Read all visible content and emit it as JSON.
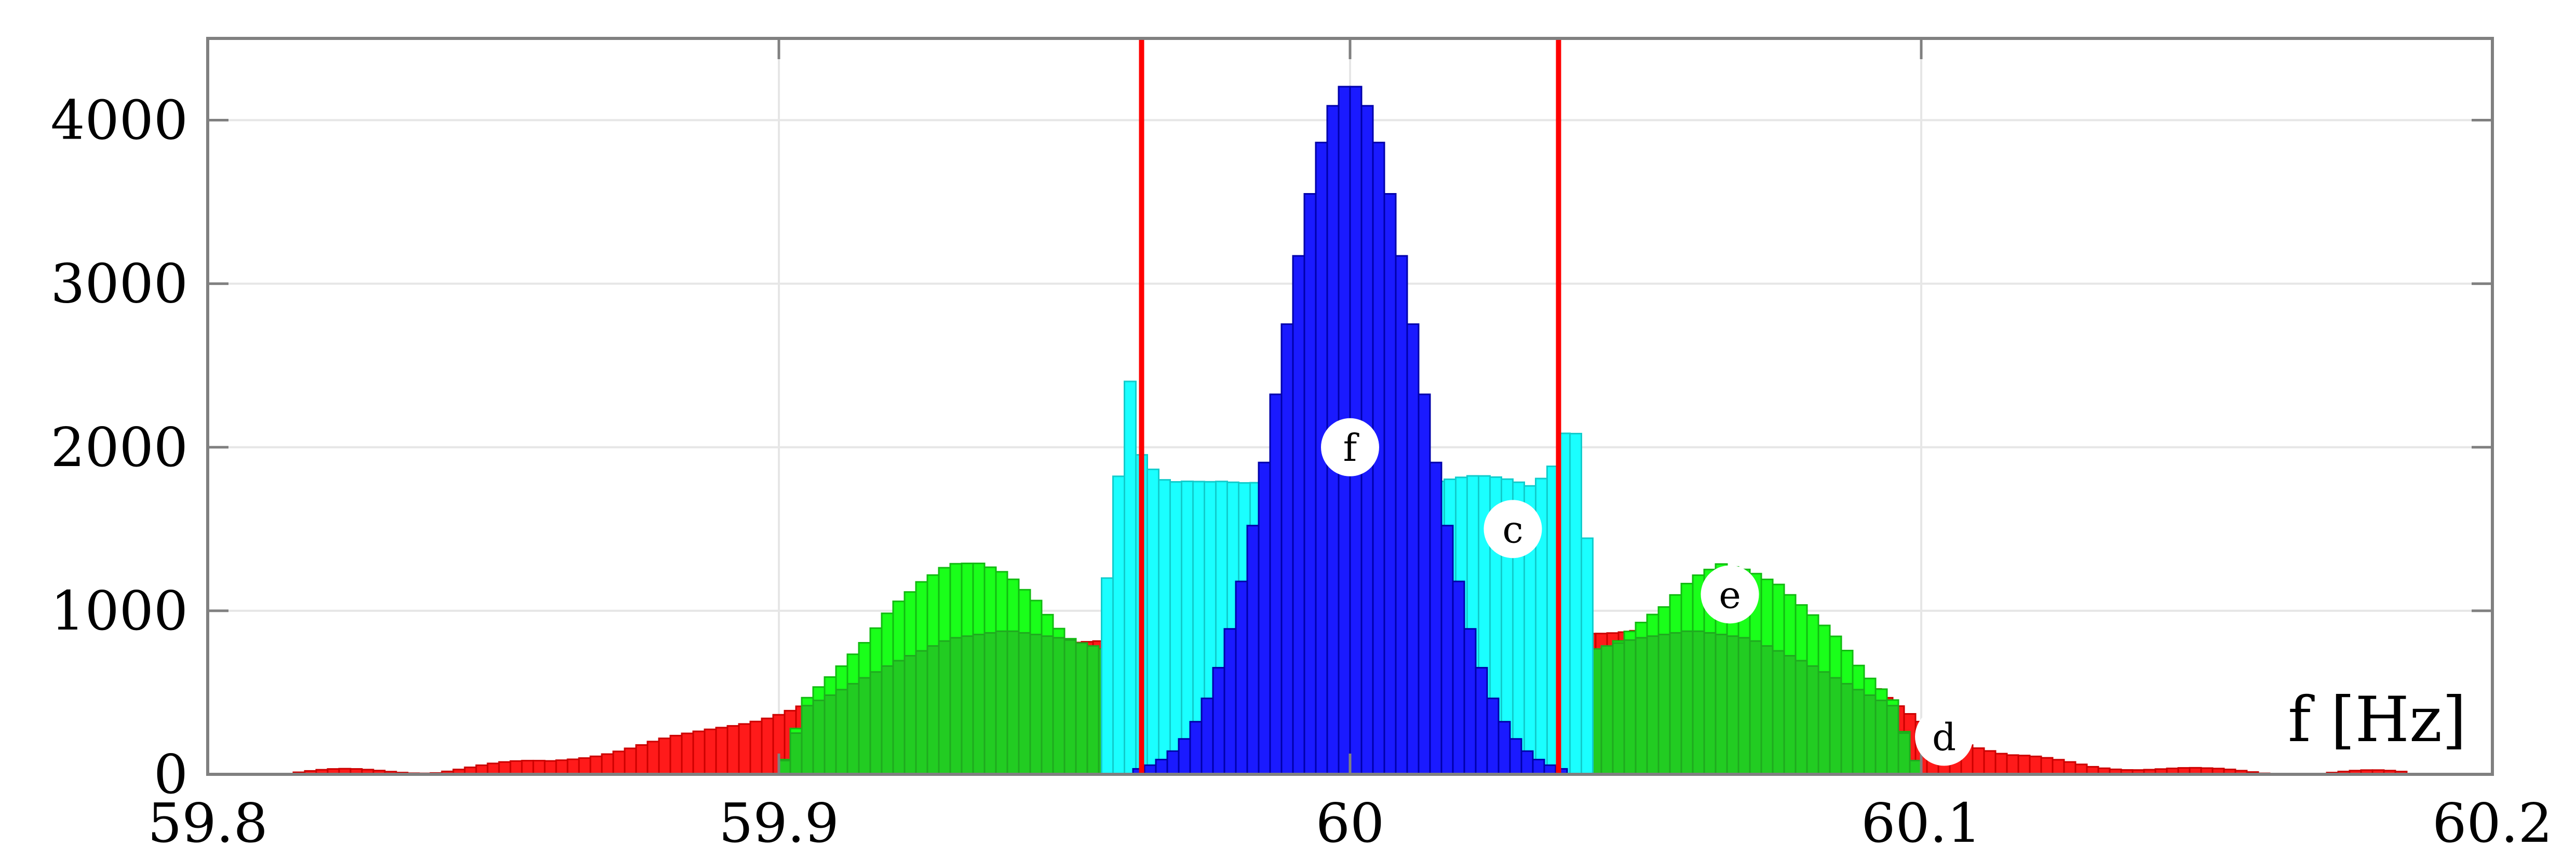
{
  "chart_data": {
    "type": "bar",
    "title": "",
    "xlabel": "f [Hz]",
    "ylabel": "",
    "xlim": [
      59.8,
      60.2
    ],
    "ylim": [
      0,
      4500
    ],
    "xticks": [
      59.8,
      59.9,
      60,
      60.1,
      60.2
    ],
    "xtick_labels": [
      "59.8",
      "59.9",
      "60",
      "60.1",
      "60.2"
    ],
    "yticks": [
      0,
      1000,
      2000,
      3000,
      4000
    ],
    "ytick_labels": [
      "0",
      "1000",
      "2000",
      "3000",
      "4000"
    ],
    "grid": true,
    "legend": "none",
    "colors": {
      "d": "#ff1a1a",
      "e": "#1aff1a",
      "c": "#1affff",
      "f": "#1a1aff",
      "green_shadow": "#22cc22",
      "vline": "#ff0000",
      "grid": "#e6e6e6",
      "frame": "#808080"
    },
    "vertical_lines_x": [
      59.9635,
      60.0365
    ],
    "annotations": [
      {
        "label": "f",
        "x": 60.0,
        "y": 2000
      },
      {
        "label": "c",
        "x": 60.0285,
        "y": 1500
      },
      {
        "label": "e",
        "x": 60.0665,
        "y": 1100
      },
      {
        "label": "d",
        "x": 60.104,
        "y": 230
      }
    ],
    "histograms": [
      {
        "label": "d",
        "bin_width": 0.002,
        "range": [
          59.815,
          60.185
        ],
        "profile": [
          [
            59.815,
            12
          ],
          [
            59.84,
            25
          ],
          [
            59.86,
            80
          ],
          [
            59.875,
            170
          ],
          [
            59.885,
            240
          ],
          [
            59.895,
            330
          ],
          [
            59.905,
            430
          ],
          [
            59.915,
            530
          ],
          [
            59.925,
            620
          ],
          [
            59.935,
            690
          ],
          [
            59.945,
            780
          ],
          [
            59.955,
            830
          ],
          [
            59.965,
            855
          ],
          [
            59.975,
            810
          ],
          [
            59.985,
            770
          ],
          [
            59.995,
            760
          ],
          [
            60.005,
            760
          ],
          [
            60.015,
            770
          ],
          [
            60.025,
            810
          ],
          [
            60.035,
            855
          ],
          [
            60.045,
            880
          ],
          [
            60.055,
            900
          ],
          [
            60.065,
            880
          ],
          [
            60.075,
            780
          ],
          [
            60.085,
            680
          ],
          [
            60.095,
            430
          ],
          [
            60.105,
            230
          ],
          [
            60.115,
            110
          ],
          [
            60.13,
            55
          ],
          [
            60.15,
            20
          ],
          [
            60.185,
            6
          ]
        ]
      },
      {
        "label": "e",
        "bin_width": 0.002,
        "range": [
          59.9,
          60.1
        ],
        "profile": [
          [
            59.9,
            0
          ],
          [
            59.905,
            450
          ],
          [
            59.91,
            600
          ],
          [
            59.915,
            800
          ],
          [
            59.92,
            1050
          ],
          [
            59.925,
            1200
          ],
          [
            59.93,
            1290
          ],
          [
            59.935,
            1270
          ],
          [
            59.94,
            1200
          ],
          [
            59.945,
            1060
          ],
          [
            59.95,
            870
          ],
          [
            59.955,
            780
          ],
          [
            59.96,
            730
          ],
          [
            59.965,
            0
          ],
          [
            60.035,
            0
          ],
          [
            60.04,
            720
          ],
          [
            60.045,
            780
          ],
          [
            60.05,
            900
          ],
          [
            60.055,
            1000
          ],
          [
            60.06,
            1180
          ],
          [
            60.065,
            1290
          ],
          [
            60.07,
            1270
          ],
          [
            60.075,
            1180
          ],
          [
            60.08,
            1000
          ],
          [
            60.085,
            820
          ],
          [
            60.09,
            600
          ],
          [
            60.095,
            460
          ],
          [
            60.1,
            0
          ]
        ]
      },
      {
        "label": "e-shadow",
        "bin_width": 0.002,
        "range": [
          59.9,
          60.1
        ],
        "profile": [
          [
            59.9,
            0
          ],
          [
            59.905,
            420
          ],
          [
            59.91,
            500
          ],
          [
            59.92,
            680
          ],
          [
            59.93,
            830
          ],
          [
            59.94,
            880
          ],
          [
            59.95,
            830
          ],
          [
            59.96,
            740
          ],
          [
            59.97,
            620
          ],
          [
            59.975,
            0
          ],
          [
            60.025,
            0
          ],
          [
            60.03,
            620
          ],
          [
            60.04,
            740
          ],
          [
            60.05,
            830
          ],
          [
            60.06,
            880
          ],
          [
            60.07,
            830
          ],
          [
            60.08,
            680
          ],
          [
            60.09,
            500
          ],
          [
            60.095,
            420
          ],
          [
            60.1,
            0
          ]
        ]
      },
      {
        "label": "c",
        "bin_width": 0.002,
        "range": [
          59.9565,
          60.0435
        ],
        "profile": [
          [
            59.9565,
            1000
          ],
          [
            59.958,
            1300
          ],
          [
            59.96,
            1980
          ],
          [
            59.9615,
            2380
          ],
          [
            59.963,
            1950
          ],
          [
            59.965,
            1850
          ],
          [
            59.968,
            1760
          ],
          [
            59.972,
            1790
          ],
          [
            59.978,
            1820
          ],
          [
            59.985,
            1800
          ],
          [
            59.992,
            1810
          ],
          [
            60.0,
            1830
          ],
          [
            60.008,
            1810
          ],
          [
            60.015,
            1800
          ],
          [
            60.022,
            1800
          ],
          [
            60.028,
            1780
          ],
          [
            60.032,
            1760
          ],
          [
            60.035,
            1880
          ],
          [
            60.037,
            1980
          ],
          [
            60.0385,
            2380
          ],
          [
            60.04,
            1980
          ],
          [
            60.042,
            1300
          ],
          [
            60.0435,
            1000
          ]
        ]
      },
      {
        "label": "f",
        "bin_width": 0.002,
        "mean": 60.0,
        "std": 0.0119,
        "peak": 4220
      }
    ]
  }
}
